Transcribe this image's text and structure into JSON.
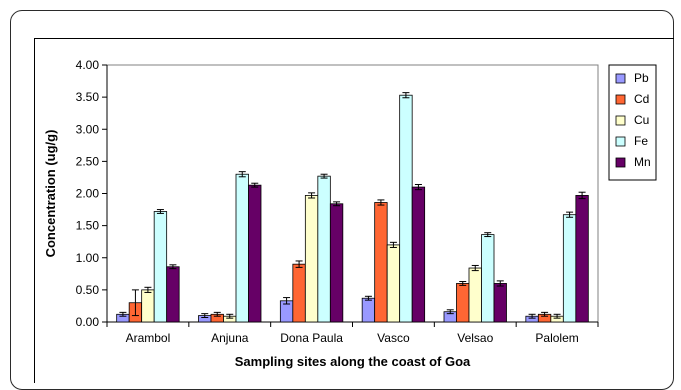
{
  "chart_data": {
    "type": "bar",
    "title": "",
    "xlabel": "Sampling sites along the coast of Goa",
    "ylabel": "Concentration (ug/g)",
    "ylim": [
      0,
      4.0
    ],
    "yticks": [
      "0.00",
      "0.50",
      "1.00",
      "1.50",
      "2.00",
      "2.50",
      "3.00",
      "3.50",
      "4.00"
    ],
    "categories": [
      "Arambol",
      "Anjuna",
      "Dona Paula",
      "Vasco",
      "Velsao",
      "Palolem"
    ],
    "legend_position": "right",
    "grid": false,
    "error_bars": true,
    "series": [
      {
        "name": "Pb",
        "color": "#9999ff",
        "values": [
          0.12,
          0.1,
          0.33,
          0.37,
          0.16,
          0.09
        ],
        "errors": [
          0.03,
          0.03,
          0.05,
          0.03,
          0.03,
          0.03
        ]
      },
      {
        "name": "Cd",
        "color": "#ff6633",
        "values": [
          0.3,
          0.12,
          0.9,
          1.86,
          0.6,
          0.12
        ],
        "errors": [
          0.2,
          0.03,
          0.05,
          0.04,
          0.03,
          0.03
        ]
      },
      {
        "name": "Cu",
        "color": "#ffffcc",
        "values": [
          0.5,
          0.09,
          1.97,
          1.2,
          0.84,
          0.09
        ],
        "errors": [
          0.04,
          0.03,
          0.04,
          0.04,
          0.04,
          0.03
        ]
      },
      {
        "name": "Fe",
        "color": "#ccffff",
        "values": [
          1.72,
          2.3,
          2.27,
          3.53,
          1.36,
          1.67
        ],
        "errors": [
          0.03,
          0.04,
          0.03,
          0.04,
          0.03,
          0.04
        ]
      },
      {
        "name": "Mn",
        "color": "#660066",
        "values": [
          0.86,
          2.13,
          1.84,
          2.1,
          0.6,
          1.97
        ],
        "errors": [
          0.03,
          0.03,
          0.03,
          0.04,
          0.04,
          0.05
        ]
      }
    ]
  }
}
